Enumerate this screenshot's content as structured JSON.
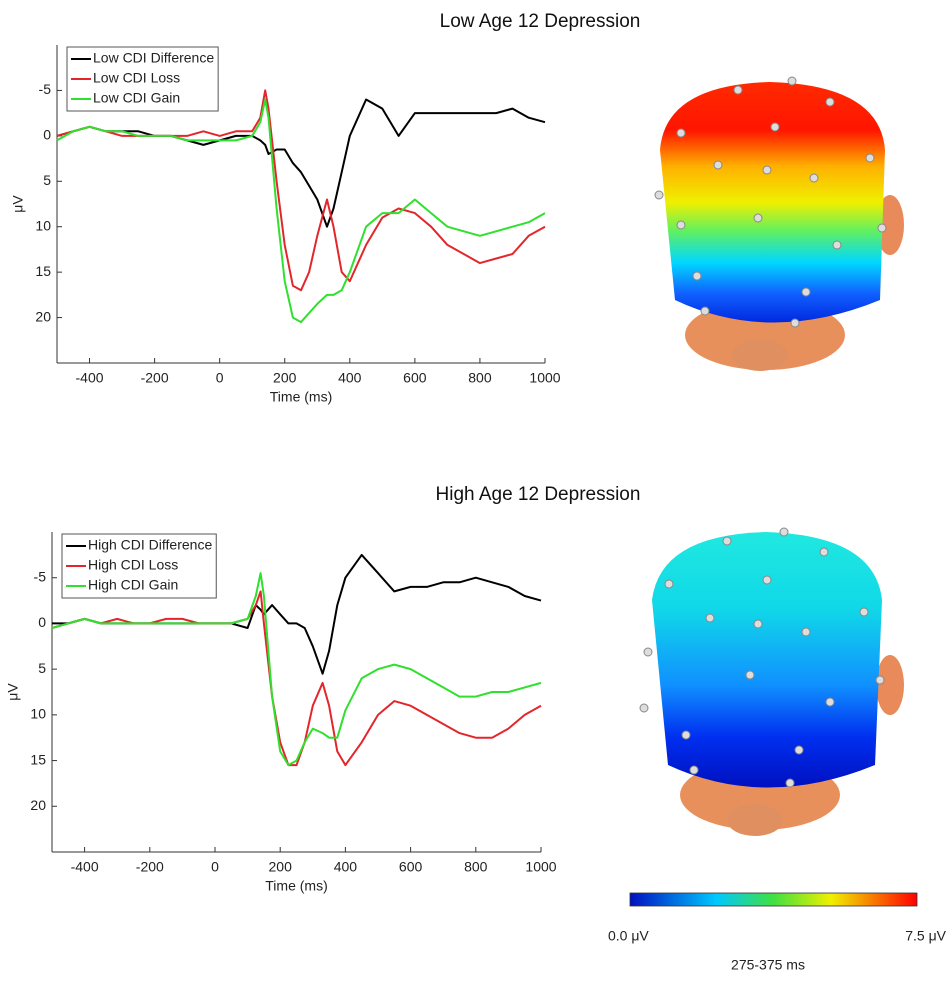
{
  "chart_data": [
    {
      "type": "line",
      "title": "Low Age 12 Depression",
      "x_label": "Time (ms)",
      "y_label": "μV",
      "x": [
        -500,
        -450,
        -400,
        -350,
        -300,
        -250,
        -200,
        -150,
        -100,
        -50,
        0,
        50,
        100,
        125,
        140,
        150,
        175,
        200,
        225,
        250,
        275,
        300,
        330,
        350,
        375,
        400,
        450,
        500,
        550,
        600,
        650,
        700,
        750,
        800,
        850,
        900,
        950,
        1000
      ],
      "series": [
        {
          "name": "Low CDI Difference",
          "color": "#000000",
          "values": [
            0,
            -0.5,
            -1,
            -0.5,
            -0.5,
            -0.5,
            0,
            0,
            0.5,
            1,
            0.5,
            0,
            0,
            0.5,
            1,
            2,
            1.5,
            1.5,
            3,
            4,
            5.5,
            7,
            10,
            8,
            4,
            0,
            -4,
            -3,
            0,
            -2.5,
            -2.5,
            -2.5,
            -2.5,
            -2.5,
            -2.5,
            -3,
            -2,
            -1.5
          ]
        },
        {
          "name": "Low CDI Loss",
          "color": "#e3262b",
          "values": [
            0,
            -0.5,
            -1,
            -0.5,
            0,
            0,
            0,
            0,
            0,
            -0.5,
            0,
            -0.5,
            -0.5,
            -2,
            -5,
            -3,
            5,
            12,
            16.5,
            17,
            15,
            11,
            7,
            10,
            15,
            16,
            12,
            9,
            8,
            8.5,
            10,
            12,
            13,
            14,
            13.5,
            13,
            11,
            10
          ]
        },
        {
          "name": "Low CDI Gain",
          "color": "#2fe02f",
          "values": [
            0.5,
            -0.5,
            -1,
            -0.5,
            -0.5,
            0,
            0,
            0,
            0.5,
            0.5,
            0.5,
            0.5,
            0,
            -1.5,
            -4,
            -2,
            8,
            16,
            20,
            20.5,
            19.5,
            18.5,
            17.5,
            17.5,
            17,
            15,
            10,
            8.5,
            8.5,
            7,
            8.5,
            10,
            10.5,
            11,
            10.5,
            10,
            9.5,
            8.5
          ]
        }
      ],
      "xlim": [
        -500,
        1000
      ],
      "xticks": [
        -400,
        -200,
        0,
        200,
        400,
        600,
        800,
        1000
      ],
      "ylim": [
        -10,
        25
      ],
      "yticks": [
        -5,
        0,
        5,
        10,
        15,
        20
      ],
      "y_reversed": true,
      "legend": "top-left"
    },
    {
      "type": "line",
      "title": "High Age 12 Depression",
      "x_label": "Time (ms)",
      "y_label": "μV",
      "x": [
        -500,
        -450,
        -400,
        -350,
        -300,
        -250,
        -200,
        -150,
        -100,
        -50,
        0,
        50,
        100,
        125,
        140,
        150,
        175,
        200,
        225,
        250,
        275,
        300,
        330,
        350,
        375,
        400,
        450,
        500,
        550,
        600,
        650,
        700,
        750,
        800,
        850,
        900,
        950,
        1000
      ],
      "series": [
        {
          "name": "High CDI Difference",
          "color": "#000000",
          "values": [
            0,
            0,
            -0.5,
            0,
            0,
            0,
            0,
            0,
            0,
            0,
            0,
            0,
            0.5,
            -2,
            -1.5,
            -1,
            -2,
            -1,
            0,
            0,
            0.5,
            2.5,
            5.5,
            3,
            -2,
            -5,
            -7.5,
            -5.5,
            -3.5,
            -4,
            -4,
            -4.5,
            -4.5,
            -5,
            -4.5,
            -4,
            -3,
            -2.5
          ]
        },
        {
          "name": "High CDI Loss",
          "color": "#e3262b",
          "values": [
            0.5,
            0,
            -0.5,
            0,
            -0.5,
            0,
            0,
            -0.5,
            -0.5,
            0,
            0,
            0,
            -0.5,
            -2,
            -3.5,
            0,
            8,
            13,
            15.5,
            15.5,
            13,
            9,
            6.5,
            9,
            14,
            15.5,
            13,
            10,
            8.5,
            9,
            10,
            11,
            12,
            12.5,
            12.5,
            11.5,
            10,
            9
          ]
        },
        {
          "name": "High CDI Gain",
          "color": "#2fe02f",
          "values": [
            0.5,
            0,
            -0.5,
            0,
            0,
            0,
            0,
            0,
            0,
            0,
            0,
            0,
            -0.5,
            -3,
            -5.5,
            -3,
            8,
            14,
            15.5,
            15,
            13,
            11.5,
            12,
            12.5,
            12.5,
            9.5,
            6,
            5,
            4.5,
            5,
            6,
            7,
            8,
            8,
            7.5,
            7.5,
            7,
            6.5
          ]
        }
      ],
      "xlim": [
        -500,
        1000
      ],
      "xticks": [
        -400,
        -200,
        0,
        200,
        400,
        600,
        800,
        1000
      ],
      "ylim": [
        -10,
        25
      ],
      "yticks": [
        -5,
        0,
        5,
        10,
        15,
        20
      ],
      "y_reversed": true,
      "legend": "top-left"
    }
  ],
  "colorbar": {
    "min_label": "0.0 μV",
    "max_label": "7.5 μV",
    "window": "275-375 ms"
  }
}
